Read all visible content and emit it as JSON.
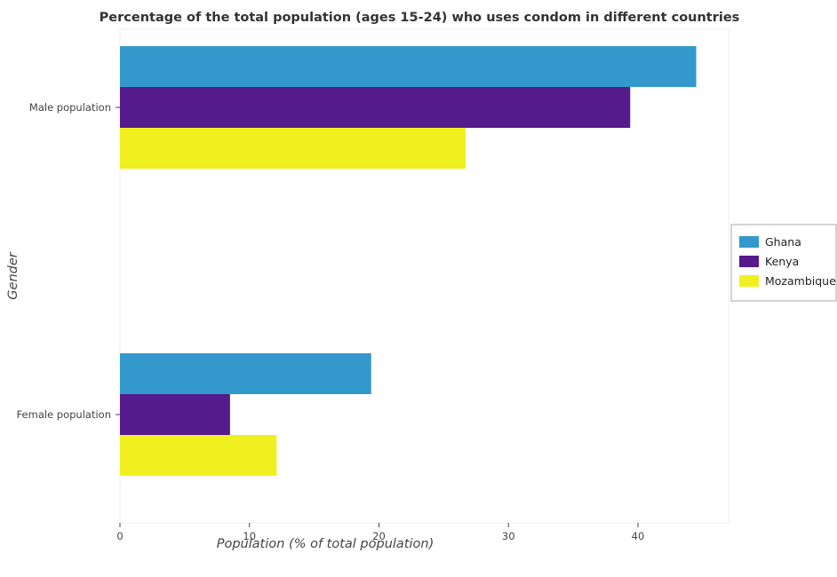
{
  "chart_data": {
    "type": "bar",
    "orientation": "horizontal",
    "title": "Percentage of the total population (ages 15-24) who uses condom in different countries",
    "xlabel": "Population (% of total population)",
    "ylabel": "Gender",
    "categories": [
      "Female population",
      "Male population"
    ],
    "series": [
      {
        "name": "Ghana",
        "color": "#3399cc",
        "values": [
          19.4,
          44.5
        ]
      },
      {
        "name": "Kenya",
        "color": "#551a8b",
        "values": [
          8.5,
          39.4
        ]
      },
      {
        "name": "Mozambique",
        "color": "#f0f020",
        "values": [
          12.1,
          26.7
        ]
      }
    ],
    "xlim": [
      0,
      47
    ],
    "xticks": [
      0,
      10,
      20,
      30,
      40
    ],
    "grid": false,
    "legend_position": "right"
  }
}
